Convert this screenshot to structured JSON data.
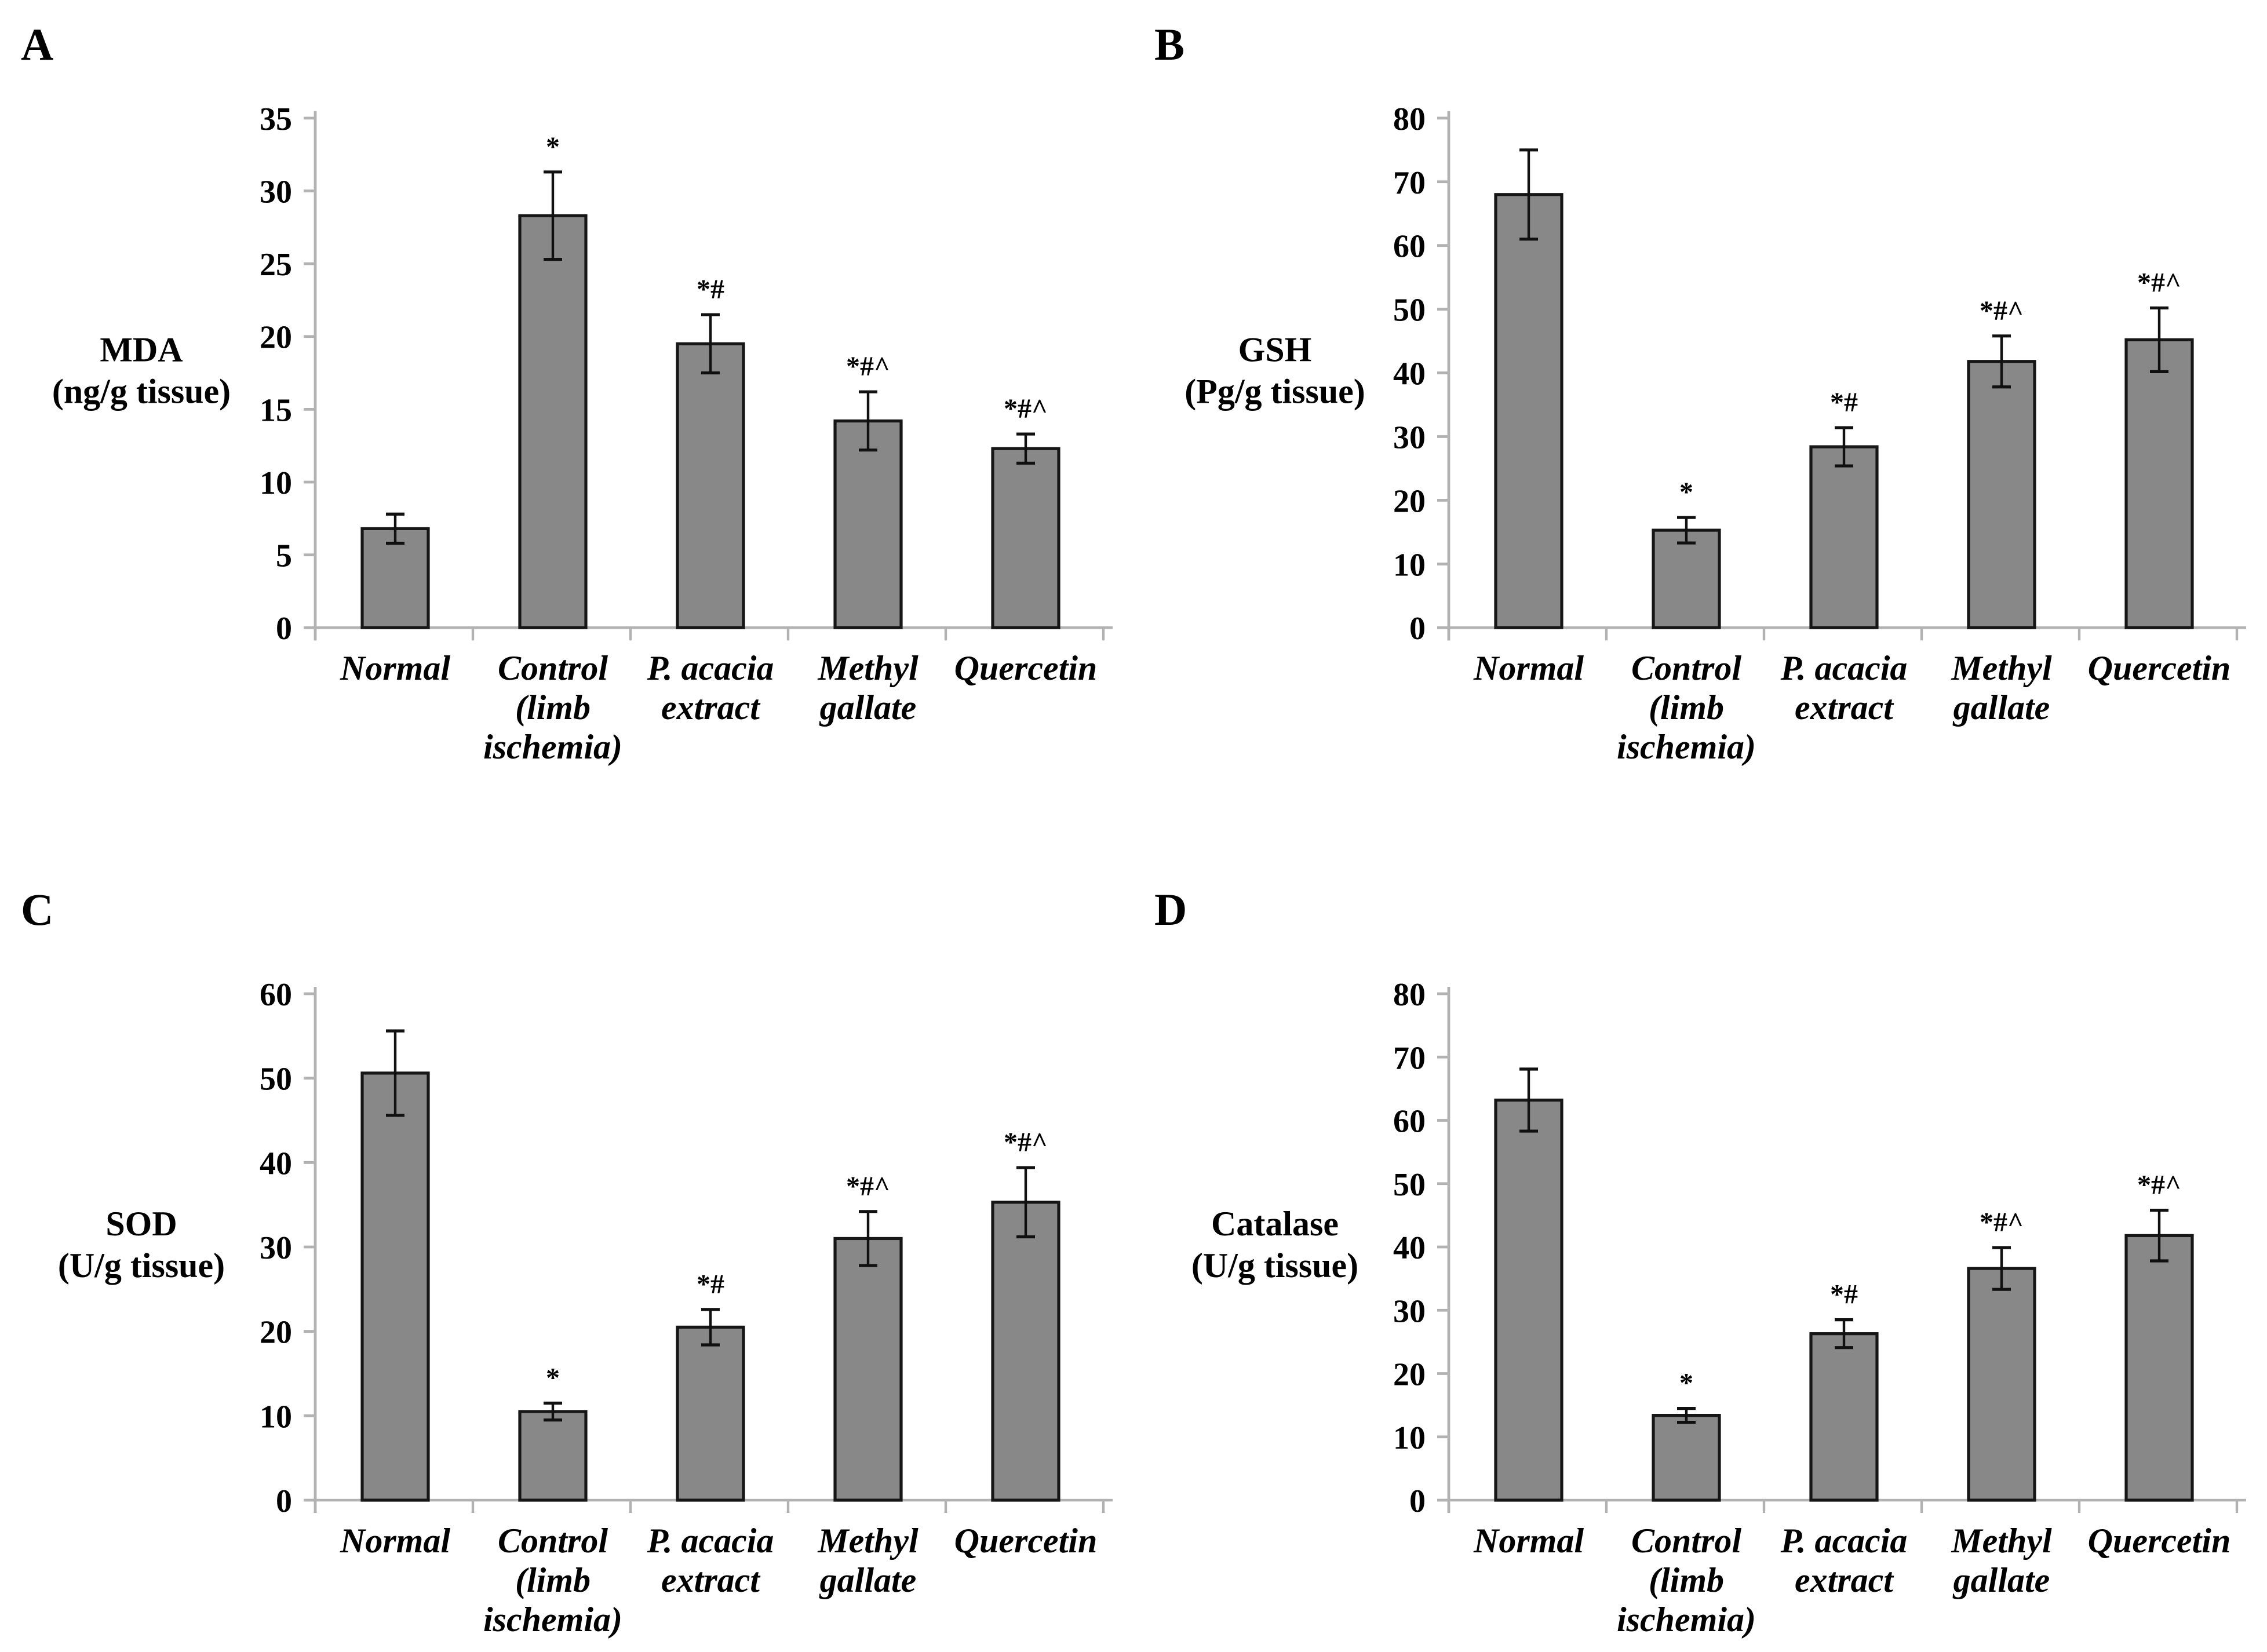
{
  "figure": {
    "background": "#ffffff",
    "text_color": "#000000",
    "bar_fill": "#888888",
    "bar_border": "#161616",
    "axis_color": "#b2b2b2",
    "error_color": "#101010"
  },
  "category_lines": [
    [
      "Normal"
    ],
    [
      "Control",
      "(limb",
      "ischemia)"
    ],
    [
      "P. acacia",
      "extract"
    ],
    [
      "Methyl",
      "gallate"
    ],
    [
      "Quercetin"
    ]
  ],
  "chart_data": [
    {
      "type": "bar",
      "panel": "A",
      "title": "",
      "ylabel": "MDA (ng/g tissue)",
      "ylabel_lines": [
        "MDA",
        "(ng/g tissue)"
      ],
      "xlabel": "",
      "ylim": [
        0,
        35
      ],
      "yticks": [
        0,
        5,
        10,
        15,
        20,
        25,
        30,
        35
      ],
      "grid": false,
      "legend": null,
      "categories": [
        "Normal",
        "Control (limb ischemia)",
        "P. acacia extract",
        "Methyl gallate",
        "Quercetin"
      ],
      "values": [
        6.8,
        28.3,
        19.5,
        14.2,
        12.3
      ],
      "errors": [
        1.0,
        3.0,
        2.0,
        2.0,
        1.0
      ],
      "annotations": [
        "",
        "*",
        "*#",
        "*#^",
        "*#^"
      ]
    },
    {
      "type": "bar",
      "panel": "B",
      "title": "",
      "ylabel": "GSH (Pg/g tissue)",
      "ylabel_lines": [
        "GSH",
        "(Pg/g tissue)"
      ],
      "xlabel": "",
      "ylim": [
        0,
        80
      ],
      "yticks": [
        0,
        10,
        20,
        30,
        40,
        50,
        60,
        70,
        80
      ],
      "grid": false,
      "legend": null,
      "categories": [
        "Normal",
        "Control (limb ischemia)",
        "P. acacia extract",
        "Methyl gallate",
        "Quercetin"
      ],
      "values": [
        68.0,
        15.3,
        28.4,
        41.8,
        45.2
      ],
      "errors": [
        7.0,
        2.0,
        3.0,
        4.0,
        5.0
      ],
      "annotations": [
        "",
        "*",
        "*#",
        "*#^",
        "*#^"
      ]
    },
    {
      "type": "bar",
      "panel": "C",
      "title": "",
      "ylabel": "SOD (U/g tissue)",
      "ylabel_lines": [
        "SOD",
        "(U/g tissue)"
      ],
      "xlabel": "",
      "ylim": [
        0,
        60
      ],
      "yticks": [
        0,
        10,
        20,
        30,
        40,
        50,
        60
      ],
      "grid": false,
      "legend": null,
      "categories": [
        "Normal",
        "Control (limb ischemia)",
        "P. acacia extract",
        "Methyl gallate",
        "Quercetin"
      ],
      "values": [
        50.6,
        10.5,
        20.5,
        31.0,
        35.3
      ],
      "errors": [
        5.0,
        1.0,
        2.1,
        3.2,
        4.1
      ],
      "annotations": [
        "",
        "*",
        "*#",
        "*#^",
        "*#^"
      ]
    },
    {
      "type": "bar",
      "panel": "D",
      "title": "",
      "ylabel": "Catalase (U/g tissue)",
      "ylabel_lines": [
        "Catalase",
        "(U/g tissue)"
      ],
      "xlabel": "",
      "ylim": [
        0,
        80
      ],
      "yticks": [
        0,
        10,
        20,
        30,
        40,
        50,
        60,
        70,
        80
      ],
      "grid": false,
      "legend": null,
      "categories": [
        "Normal",
        "Control (limb ischemia)",
        "P. acacia extract",
        "Methyl gallate",
        "Quercetin"
      ],
      "values": [
        63.2,
        13.4,
        26.3,
        36.6,
        41.8
      ],
      "errors": [
        4.9,
        1.1,
        2.2,
        3.3,
        4.0
      ],
      "annotations": [
        "",
        "*",
        "*#",
        "*#^",
        "*#^"
      ]
    }
  ]
}
